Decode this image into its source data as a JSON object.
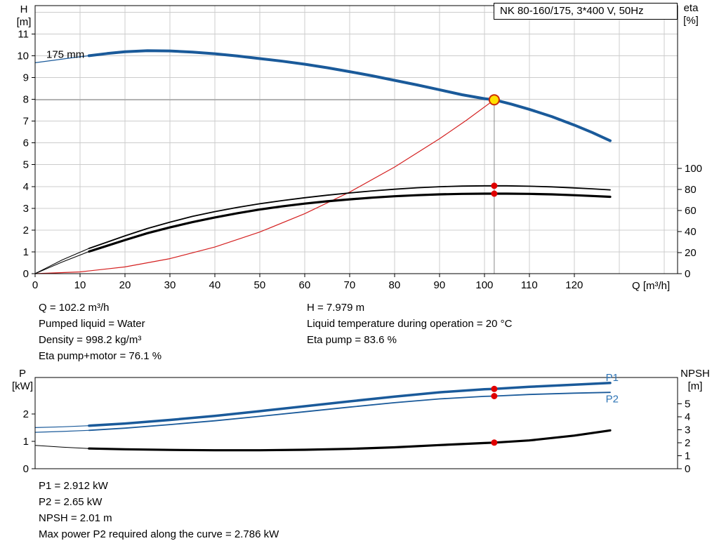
{
  "axes_labels": {
    "h": [
      "H",
      "[m]"
    ],
    "eta": [
      "eta",
      "[%]"
    ],
    "p": [
      "P",
      "[kW]"
    ],
    "npsh": [
      "NPSH",
      "[m]"
    ]
  },
  "results_top": {
    "col1": [
      "Q = 102.2 m³/h",
      "Pumped liquid = Water",
      "Density = 998.2 kg/m³",
      "Eta pump+motor = 76.1 %"
    ],
    "col2": [
      "H = 7.979 m",
      "Liquid temperature during operation = 20 °C",
      "Eta pump = 83.6 %"
    ]
  },
  "results_bottom": [
    "P1 = 2.912 kW",
    "P2 = 2.65 kW",
    "NPSH = 2.01 m",
    "Max power P2 required along the curve = 2.786 kW"
  ],
  "colors": {
    "curve_blue": "#1a5a9a",
    "curve_red": "#d42020",
    "marker_red": "#e00000",
    "duty_fill": "#ffe000",
    "duty_stroke": "#cc2d00",
    "label_blue": "#2e74b5",
    "grid": "#cccccc",
    "crosshair": "#8a8a8a"
  },
  "chart_data": [
    {
      "id": "hq",
      "type": "line",
      "title": "NK 80-160/175, 3*400 V, 50Hz",
      "xlabel": "Q [m³/h]",
      "ylabel": "H [m]",
      "y2label": "eta [%]",
      "xlim": [
        0,
        143
      ],
      "ylim": [
        0,
        12.3
      ],
      "y2lim": [
        0,
        255
      ],
      "xticks": [
        0,
        10,
        20,
        30,
        40,
        50,
        60,
        70,
        80,
        90,
        100,
        110,
        120
      ],
      "yticks": [
        0,
        1,
        2,
        3,
        4,
        5,
        6,
        7,
        8,
        9,
        10,
        11
      ],
      "y2ticks": [
        0,
        20,
        40,
        60,
        80,
        100
      ],
      "grid": true,
      "grid_step": {
        "x": 10,
        "y": 1
      },
      "crosshair": {
        "x": 102.2,
        "y": 7.979
      },
      "series": [
        {
          "name": "head-inlet",
          "axis": "left",
          "color": "#1a5a9a",
          "width": 1.2,
          "points": [
            [
              0,
              9.68
            ],
            [
              4,
              9.79
            ],
            [
              8,
              9.9
            ],
            [
              12,
              10.0
            ]
          ]
        },
        {
          "name": "head-175mm",
          "axis": "left",
          "color": "#1a5a9a",
          "width": 4,
          "points": [
            [
              12,
              10.0
            ],
            [
              16,
              10.1
            ],
            [
              20,
              10.18
            ],
            [
              25,
              10.23
            ],
            [
              30,
              10.22
            ],
            [
              35,
              10.17
            ],
            [
              40,
              10.09
            ],
            [
              45,
              9.99
            ],
            [
              50,
              9.87
            ],
            [
              55,
              9.75
            ],
            [
              60,
              9.61
            ],
            [
              65,
              9.45
            ],
            [
              70,
              9.27
            ],
            [
              75,
              9.08
            ],
            [
              80,
              8.87
            ],
            [
              85,
              8.66
            ],
            [
              90,
              8.44
            ],
            [
              95,
              8.21
            ],
            [
              100,
              8.03
            ],
            [
              102.2,
              7.979
            ],
            [
              106,
              7.78
            ],
            [
              110,
              7.54
            ],
            [
              115,
              7.21
            ],
            [
              120,
              6.82
            ],
            [
              124,
              6.48
            ],
            [
              128,
              6.1
            ]
          ]
        },
        {
          "name": "system-curve",
          "axis": "left",
          "color": "#d42020",
          "width": 1.2,
          "points": [
            [
              0,
              0
            ],
            [
              10,
              0.08
            ],
            [
              20,
              0.31
            ],
            [
              30,
              0.69
            ],
            [
              40,
              1.22
            ],
            [
              50,
              1.91
            ],
            [
              60,
              2.75
            ],
            [
              70,
              3.74
            ],
            [
              80,
              4.89
            ],
            [
              90,
              6.19
            ],
            [
              96,
              7.04
            ],
            [
              102.2,
              7.979
            ]
          ]
        },
        {
          "name": "eta-pump-inlet",
          "axis": "right",
          "color": "#000000",
          "width": 1,
          "points": [
            [
              0,
              0
            ],
            [
              6,
              13
            ],
            [
              12,
              24
            ]
          ]
        },
        {
          "name": "eta-pump",
          "axis": "right",
          "color": "#000000",
          "width": 1.8,
          "points": [
            [
              12,
              24
            ],
            [
              16,
              30
            ],
            [
              20,
              36
            ],
            [
              25,
              43
            ],
            [
              30,
              49
            ],
            [
              35,
              54.5
            ],
            [
              40,
              59
            ],
            [
              45,
              63
            ],
            [
              50,
              66.5
            ],
            [
              55,
              69.5
            ],
            [
              60,
              72.2
            ],
            [
              65,
              74.6
            ],
            [
              70,
              76.8
            ],
            [
              75,
              78.7
            ],
            [
              80,
              80.3
            ],
            [
              85,
              81.7
            ],
            [
              90,
              82.7
            ],
            [
              95,
              83.3
            ],
            [
              100,
              83.6
            ],
            [
              105,
              83.6
            ],
            [
              110,
              83.2
            ],
            [
              115,
              82.6
            ],
            [
              120,
              81.6
            ],
            [
              124,
              80.7
            ],
            [
              128,
              79.7
            ]
          ]
        },
        {
          "name": "eta-pump-motor-inlet",
          "axis": "right",
          "color": "#000000",
          "width": 1,
          "points": [
            [
              0,
              0
            ],
            [
              6,
              11
            ],
            [
              12,
              21
            ]
          ]
        },
        {
          "name": "eta-pump-motor",
          "axis": "right",
          "color": "#000000",
          "width": 3.2,
          "points": [
            [
              12,
              21
            ],
            [
              16,
              26.5
            ],
            [
              20,
              32
            ],
            [
              25,
              38.5
            ],
            [
              30,
              44
            ],
            [
              35,
              49
            ],
            [
              40,
              53.5
            ],
            [
              45,
              57.5
            ],
            [
              50,
              61
            ],
            [
              55,
              64
            ],
            [
              60,
              66.6
            ],
            [
              65,
              68.8
            ],
            [
              70,
              70.7
            ],
            [
              75,
              72.3
            ],
            [
              80,
              73.6
            ],
            [
              85,
              74.6
            ],
            [
              90,
              75.4
            ],
            [
              95,
              75.9
            ],
            [
              100,
              76.1
            ],
            [
              105,
              76.1
            ],
            [
              110,
              75.9
            ],
            [
              115,
              75.4
            ],
            [
              120,
              74.6
            ],
            [
              124,
              73.9
            ],
            [
              128,
              73.1
            ]
          ]
        }
      ],
      "markers": [
        {
          "name": "duty-point",
          "x": 102.2,
          "y": 7.979,
          "axis": "left",
          "r": 7,
          "fill": "#ffe000",
          "stroke": "#cc2d00",
          "interactable": true
        },
        {
          "name": "eta-pump-point",
          "x": 102.2,
          "y": 83.6,
          "axis": "right",
          "r": 4.5,
          "fill": "#e00000"
        },
        {
          "name": "eta-pump-motor-point",
          "x": 102.2,
          "y": 76.1,
          "axis": "right",
          "r": 4.5,
          "fill": "#e00000"
        }
      ],
      "annotations": [
        {
          "name": "impeller-diameter",
          "text": "175 mm",
          "x": 2.5,
          "y": 9.9,
          "color": "#000000"
        }
      ]
    },
    {
      "id": "power",
      "type": "line",
      "ylabel": "P [kW]",
      "y2label": "NPSH [m]",
      "xlim": [
        0,
        143
      ],
      "ylim": [
        0,
        3.33
      ],
      "y2lim": [
        0,
        7.03
      ],
      "xticks": [],
      "yticks": [
        0,
        1,
        2
      ],
      "y2ticks": [
        0,
        1,
        2,
        3,
        4,
        5
      ],
      "grid": false,
      "series": [
        {
          "name": "p1-inlet",
          "axis": "left",
          "color": "#1a5a9a",
          "width": 1.2,
          "points": [
            [
              0,
              1.5
            ],
            [
              6,
              1.53
            ],
            [
              12,
              1.57
            ]
          ]
        },
        {
          "name": "p1",
          "axis": "left",
          "color": "#1a5a9a",
          "width": 3.5,
          "points": [
            [
              12,
              1.57
            ],
            [
              20,
              1.65
            ],
            [
              30,
              1.78
            ],
            [
              40,
              1.93
            ],
            [
              50,
              2.1
            ],
            [
              60,
              2.28
            ],
            [
              70,
              2.46
            ],
            [
              80,
              2.63
            ],
            [
              90,
              2.79
            ],
            [
              100,
              2.9
            ],
            [
              102.2,
              2.912
            ],
            [
              110,
              2.99
            ],
            [
              120,
              3.07
            ],
            [
              128,
              3.13
            ]
          ]
        },
        {
          "name": "p2-inlet",
          "axis": "left",
          "color": "#1a5a9a",
          "width": 1.2,
          "points": [
            [
              0,
              1.33
            ],
            [
              6,
              1.36
            ],
            [
              12,
              1.4
            ]
          ]
        },
        {
          "name": "p2",
          "axis": "left",
          "color": "#1a5a9a",
          "width": 1.8,
          "points": [
            [
              12,
              1.4
            ],
            [
              20,
              1.48
            ],
            [
              30,
              1.61
            ],
            [
              40,
              1.75
            ],
            [
              50,
              1.91
            ],
            [
              60,
              2.08
            ],
            [
              70,
              2.25
            ],
            [
              80,
              2.41
            ],
            [
              90,
              2.55
            ],
            [
              100,
              2.64
            ],
            [
              102.2,
              2.65
            ],
            [
              110,
              2.71
            ],
            [
              120,
              2.76
            ],
            [
              128,
              2.786
            ]
          ]
        },
        {
          "name": "npsh-inlet",
          "axis": "right",
          "color": "#000000",
          "width": 1,
          "points": [
            [
              0,
              1.8
            ],
            [
              6,
              1.66
            ],
            [
              12,
              1.56
            ]
          ]
        },
        {
          "name": "npsh",
          "axis": "right",
          "color": "#000000",
          "width": 3.2,
          "points": [
            [
              12,
              1.56
            ],
            [
              20,
              1.5
            ],
            [
              30,
              1.45
            ],
            [
              40,
              1.42
            ],
            [
              50,
              1.42
            ],
            [
              60,
              1.46
            ],
            [
              70,
              1.53
            ],
            [
              80,
              1.65
            ],
            [
              90,
              1.82
            ],
            [
              100,
              1.98
            ],
            [
              102.2,
              2.01
            ],
            [
              110,
              2.18
            ],
            [
              120,
              2.55
            ],
            [
              128,
              2.95
            ]
          ]
        }
      ],
      "markers": [
        {
          "name": "p1-point",
          "x": 102.2,
          "y": 2.912,
          "axis": "left",
          "r": 4.5,
          "fill": "#e00000"
        },
        {
          "name": "p2-point",
          "x": 102.2,
          "y": 2.65,
          "axis": "left",
          "r": 4.5,
          "fill": "#e00000"
        },
        {
          "name": "npsh-point",
          "x": 102.2,
          "y": 2.01,
          "axis": "right",
          "r": 4.5,
          "fill": "#e00000"
        }
      ],
      "annotations": [
        {
          "name": "p1-label",
          "text": "P1",
          "x": 127,
          "y": 3.2,
          "color": "#2e74b5"
        },
        {
          "name": "p2-label",
          "text": "P2",
          "x": 127,
          "y": 2.42,
          "color": "#2e74b5"
        }
      ]
    }
  ]
}
